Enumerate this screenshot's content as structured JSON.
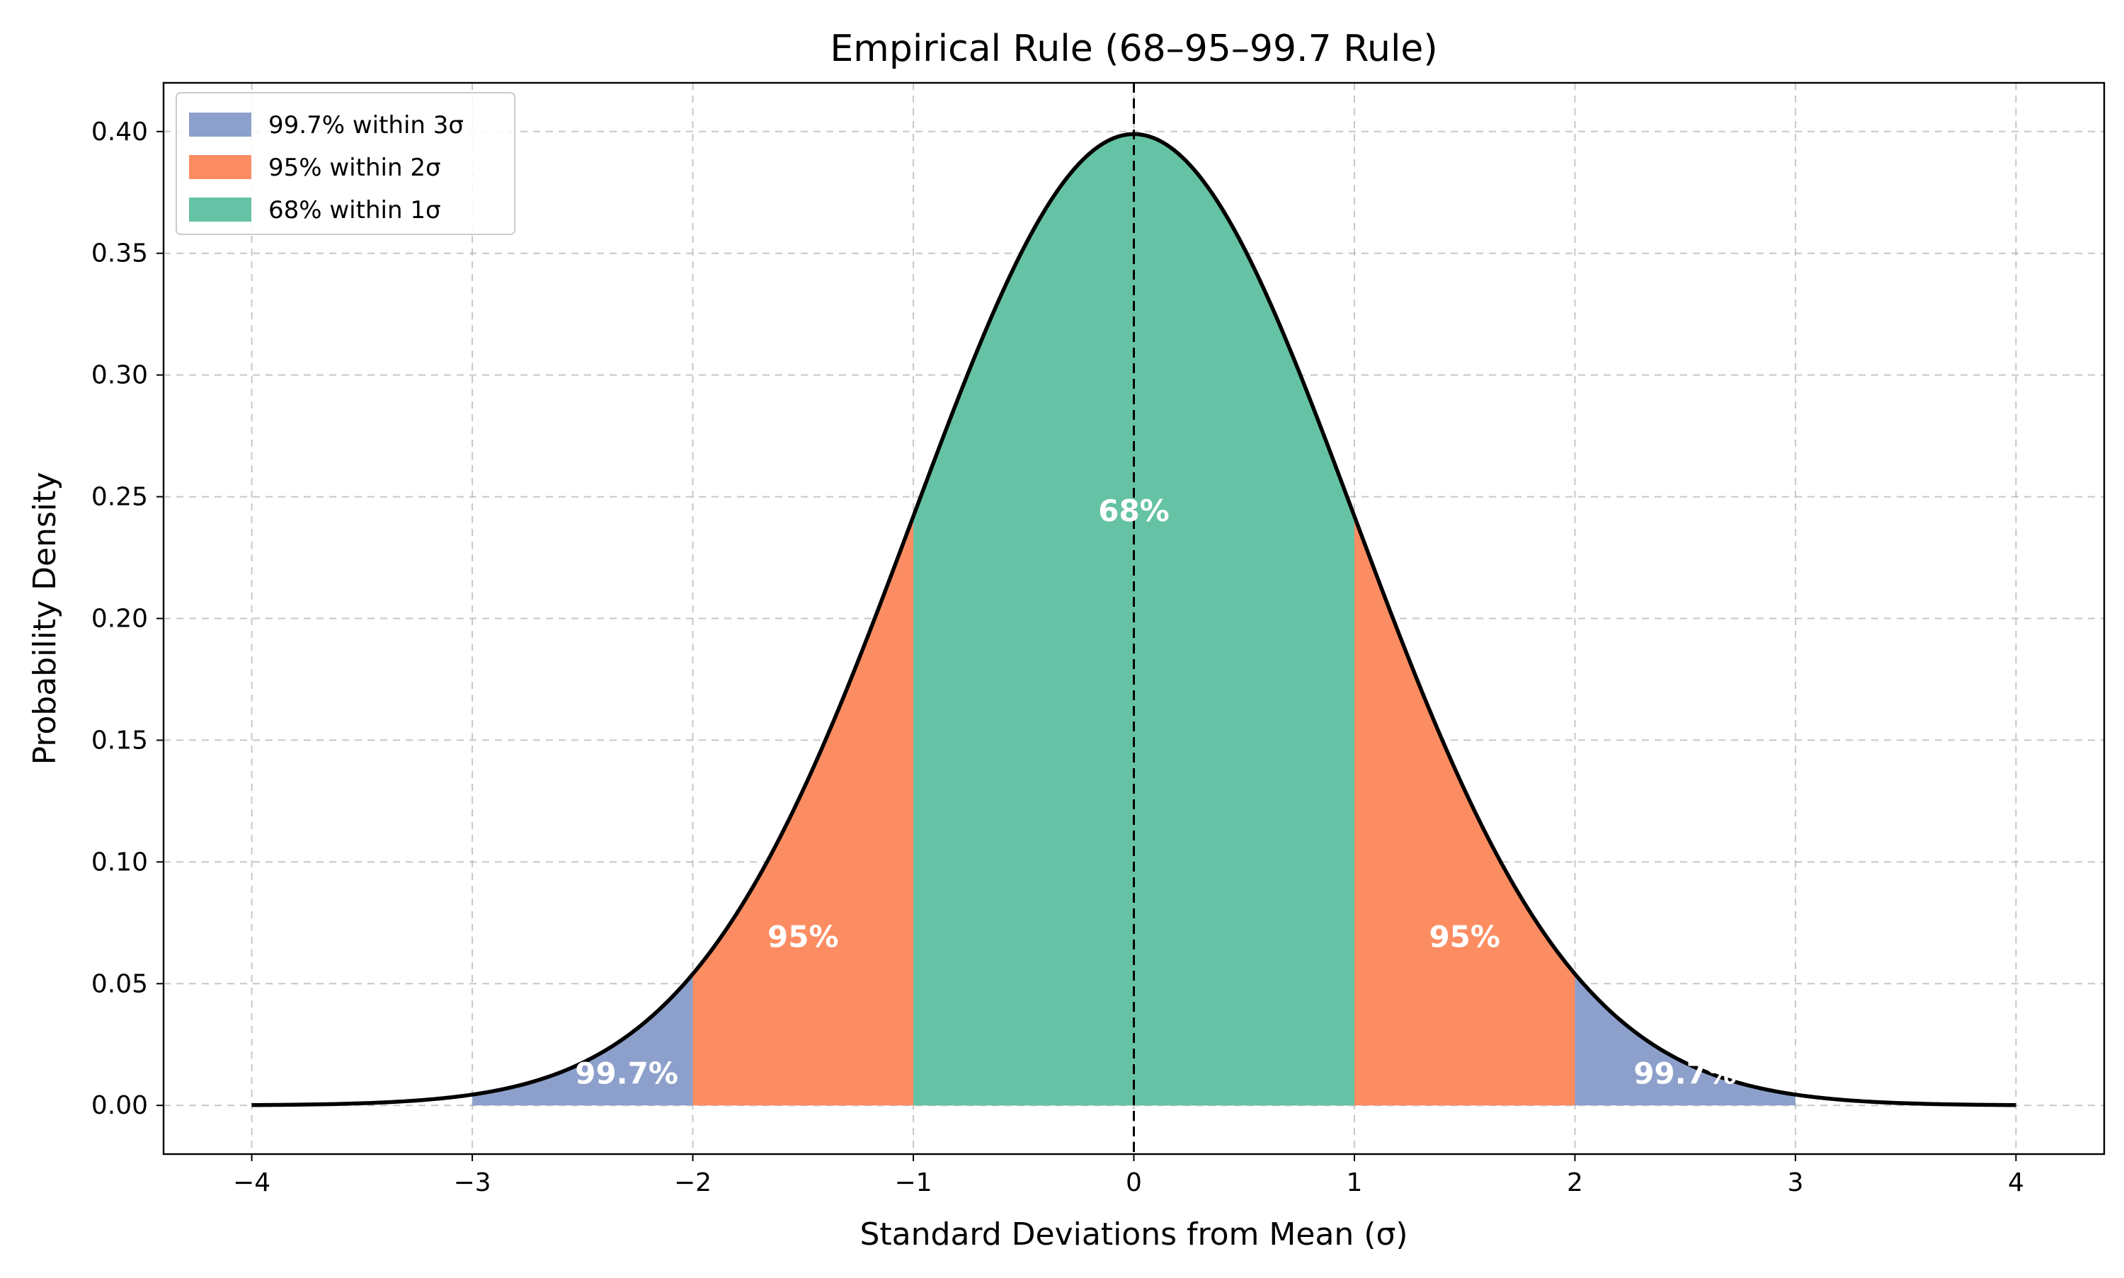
{
  "chart_data": {
    "type": "area",
    "title": "Empirical Rule (68–95–99.7 Rule)",
    "xlabel": "Standard Deviations from Mean (σ)",
    "ylabel": "Probability Density",
    "xlim": [
      -4.4,
      4.4
    ],
    "ylim": [
      -0.02,
      0.42
    ],
    "x_ticks": [
      -4,
      -3,
      -2,
      -1,
      0,
      1,
      2,
      3,
      4
    ],
    "x_tick_labels": [
      "−4",
      "−3",
      "−2",
      "−1",
      "0",
      "1",
      "2",
      "3",
      "4"
    ],
    "y_ticks": [
      0.0,
      0.05,
      0.1,
      0.15,
      0.2,
      0.25,
      0.3,
      0.35,
      0.4
    ],
    "y_tick_labels": [
      "0.00",
      "0.05",
      "0.10",
      "0.15",
      "0.20",
      "0.25",
      "0.30",
      "0.35",
      "0.40"
    ],
    "grid": true,
    "legend_position": "top-left",
    "curve": {
      "distribution": "standard normal",
      "x_range": [
        -4,
        4
      ],
      "color": "#000000"
    },
    "mean_line": {
      "x": 0,
      "style": "dashed",
      "color": "#000000"
    },
    "regions": [
      {
        "name": "99.7% within 3σ",
        "range": [
          -3,
          3
        ],
        "color": "#8da0cb"
      },
      {
        "name": "95% within 2σ",
        "range": [
          -2,
          2
        ],
        "color": "#fc8d62"
      },
      {
        "name": "68% within 1σ",
        "range": [
          -1,
          1
        ],
        "color": "#66c2a5"
      }
    ],
    "annotations": [
      {
        "text": "68%",
        "x": 0,
        "y": 0.24
      },
      {
        "text": "95%",
        "x": -1.5,
        "y": 0.065
      },
      {
        "text": "95%",
        "x": 1.5,
        "y": 0.065
      },
      {
        "text": "99.7%",
        "x": -2.3,
        "y": 0.009
      },
      {
        "text": "99.7%",
        "x": 2.5,
        "y": 0.009
      }
    ]
  }
}
